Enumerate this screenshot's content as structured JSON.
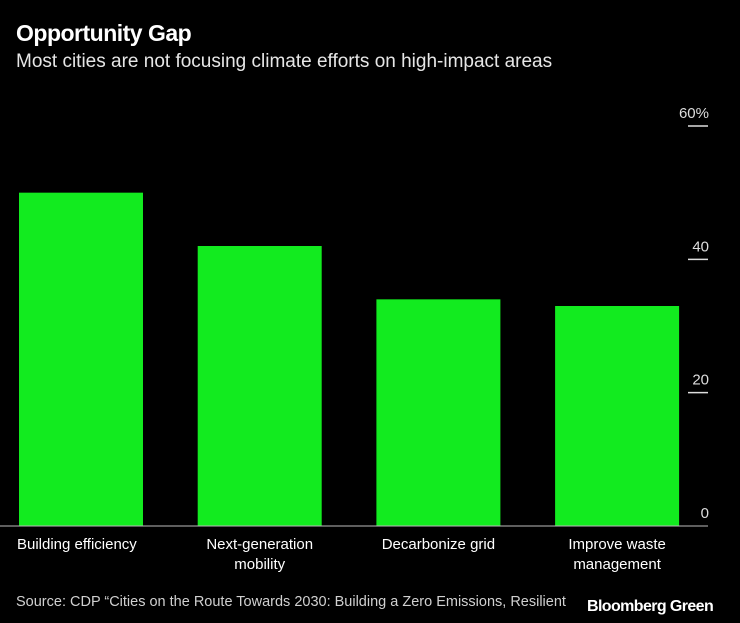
{
  "chart_data": {
    "type": "bar",
    "title": "Opportunity Gap",
    "subtitle": "Most cities are not focusing climate efforts on high-impact areas",
    "categories": [
      [
        "Building efficiency"
      ],
      [
        "Next-generation",
        "mobility"
      ],
      [
        "Decarbonize grid"
      ],
      [
        "Improve waste",
        "management"
      ]
    ],
    "values": [
      50,
      42,
      34,
      33
    ],
    "ylim": [
      0,
      60
    ],
    "yticks": [
      {
        "v": 0,
        "label": "0"
      },
      {
        "v": 20,
        "label": "20"
      },
      {
        "v": 40,
        "label": "40"
      },
      {
        "v": 60,
        "label": "60%"
      }
    ],
    "bar_color": "#12eb1f",
    "grid": false,
    "axis_side": "right"
  },
  "source": "Source:  CDP “Cities on the Route Towards 2030: Building a Zero Emissions, Resilient",
  "logo": "Bloomberg Green"
}
